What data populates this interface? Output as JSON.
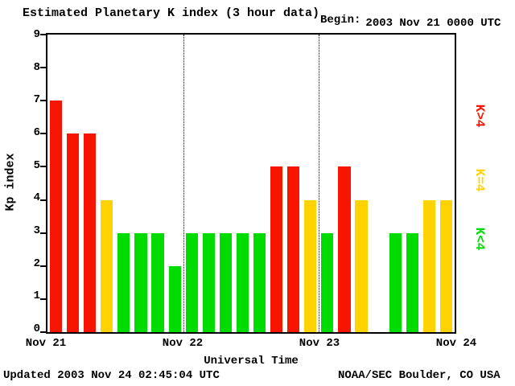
{
  "header": {
    "title": "Estimated Planetary K index (3 hour data)",
    "begin_label": "Begin:",
    "begin_value": "2003 Nov 21 0000 UTC"
  },
  "footer": {
    "updated": "Updated 2003 Nov 24 02:45:04 UTC",
    "source": "NOAA/SEC Boulder, CO USA"
  },
  "chart_data": {
    "type": "bar",
    "title": "Estimated Planetary K index (3 hour data)",
    "xlabel": "Universal Time",
    "ylabel": "Kp index",
    "ylim": [
      0,
      9
    ],
    "yticks": [
      0,
      1,
      2,
      3,
      4,
      5,
      6,
      7,
      8,
      9
    ],
    "xticks": [
      "Nov 21",
      "Nov 22",
      "Nov 23",
      "Nov 24"
    ],
    "slots_per_day": 8,
    "hours_per_slot": 3,
    "values": [
      7,
      6,
      6,
      4,
      3,
      3,
      3,
      2,
      3,
      3,
      3,
      3,
      3,
      5,
      5,
      4,
      3,
      5,
      4,
      null,
      3,
      3,
      4,
      4
    ],
    "day_boundaries": [
      8,
      16
    ],
    "grid": "dotted-vertical-day-lines",
    "legend_position": "right-rotated",
    "legend": [
      {
        "label": "K>4",
        "color": "#f81500"
      },
      {
        "label": "K=4",
        "color": "#ffd200"
      },
      {
        "label": "K<4",
        "color": "#00dc00"
      }
    ],
    "colors": {
      "k_gt_4": "#f81500",
      "k_eq_4": "#ffd200",
      "k_lt_4": "#00dc00",
      "axis": "#000000",
      "background": "#ffffff"
    }
  }
}
